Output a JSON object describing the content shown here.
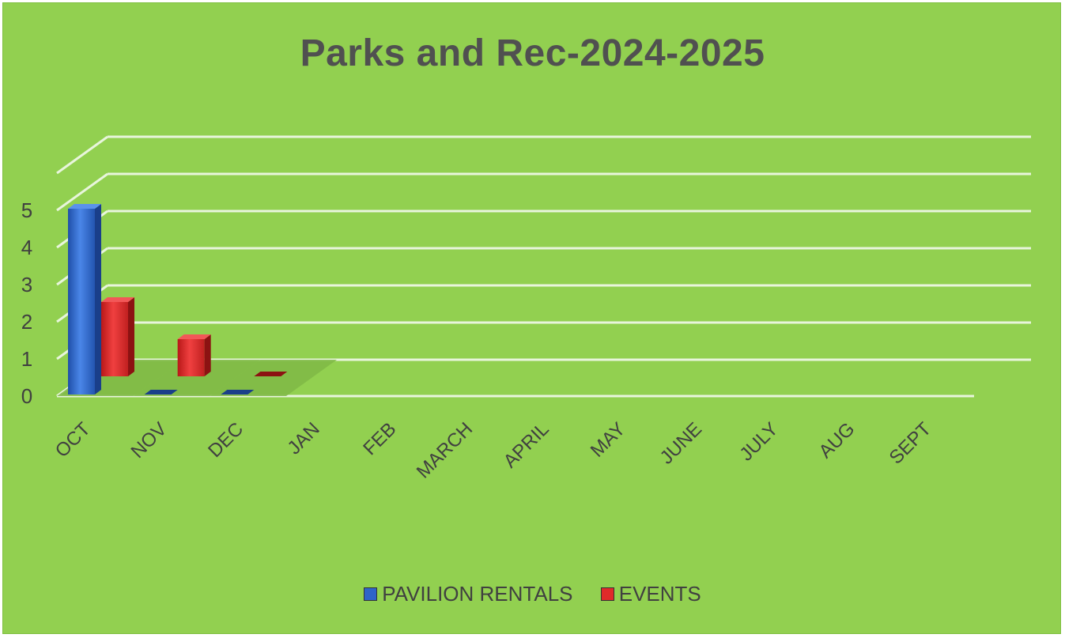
{
  "chart_data": {
    "type": "bar",
    "title": "Parks and Rec-2024-2025",
    "xlabel": "",
    "ylabel": "",
    "categories": [
      "OCT",
      "NOV",
      "DEC",
      "JAN",
      "FEB",
      "MARCH",
      "APRIL",
      "MAY",
      "JUNE",
      "JULY",
      "AUG",
      "SEPT"
    ],
    "series": [
      {
        "name": "PAVILION RENTALS",
        "color": "#2e64c8",
        "values": [
          5,
          0,
          0,
          null,
          null,
          null,
          null,
          null,
          null,
          null,
          null,
          null
        ]
      },
      {
        "name": "EVENTS",
        "color": "#e02a2a",
        "values": [
          2,
          1,
          0,
          null,
          null,
          null,
          null,
          null,
          null,
          null,
          null,
          null
        ]
      }
    ],
    "ylim": [
      0,
      5
    ],
    "yticks": [
      "0",
      "1",
      "2",
      "3",
      "4",
      "5"
    ],
    "grid": true,
    "legend_position": "bottom",
    "style": "3d-clustered-column"
  }
}
